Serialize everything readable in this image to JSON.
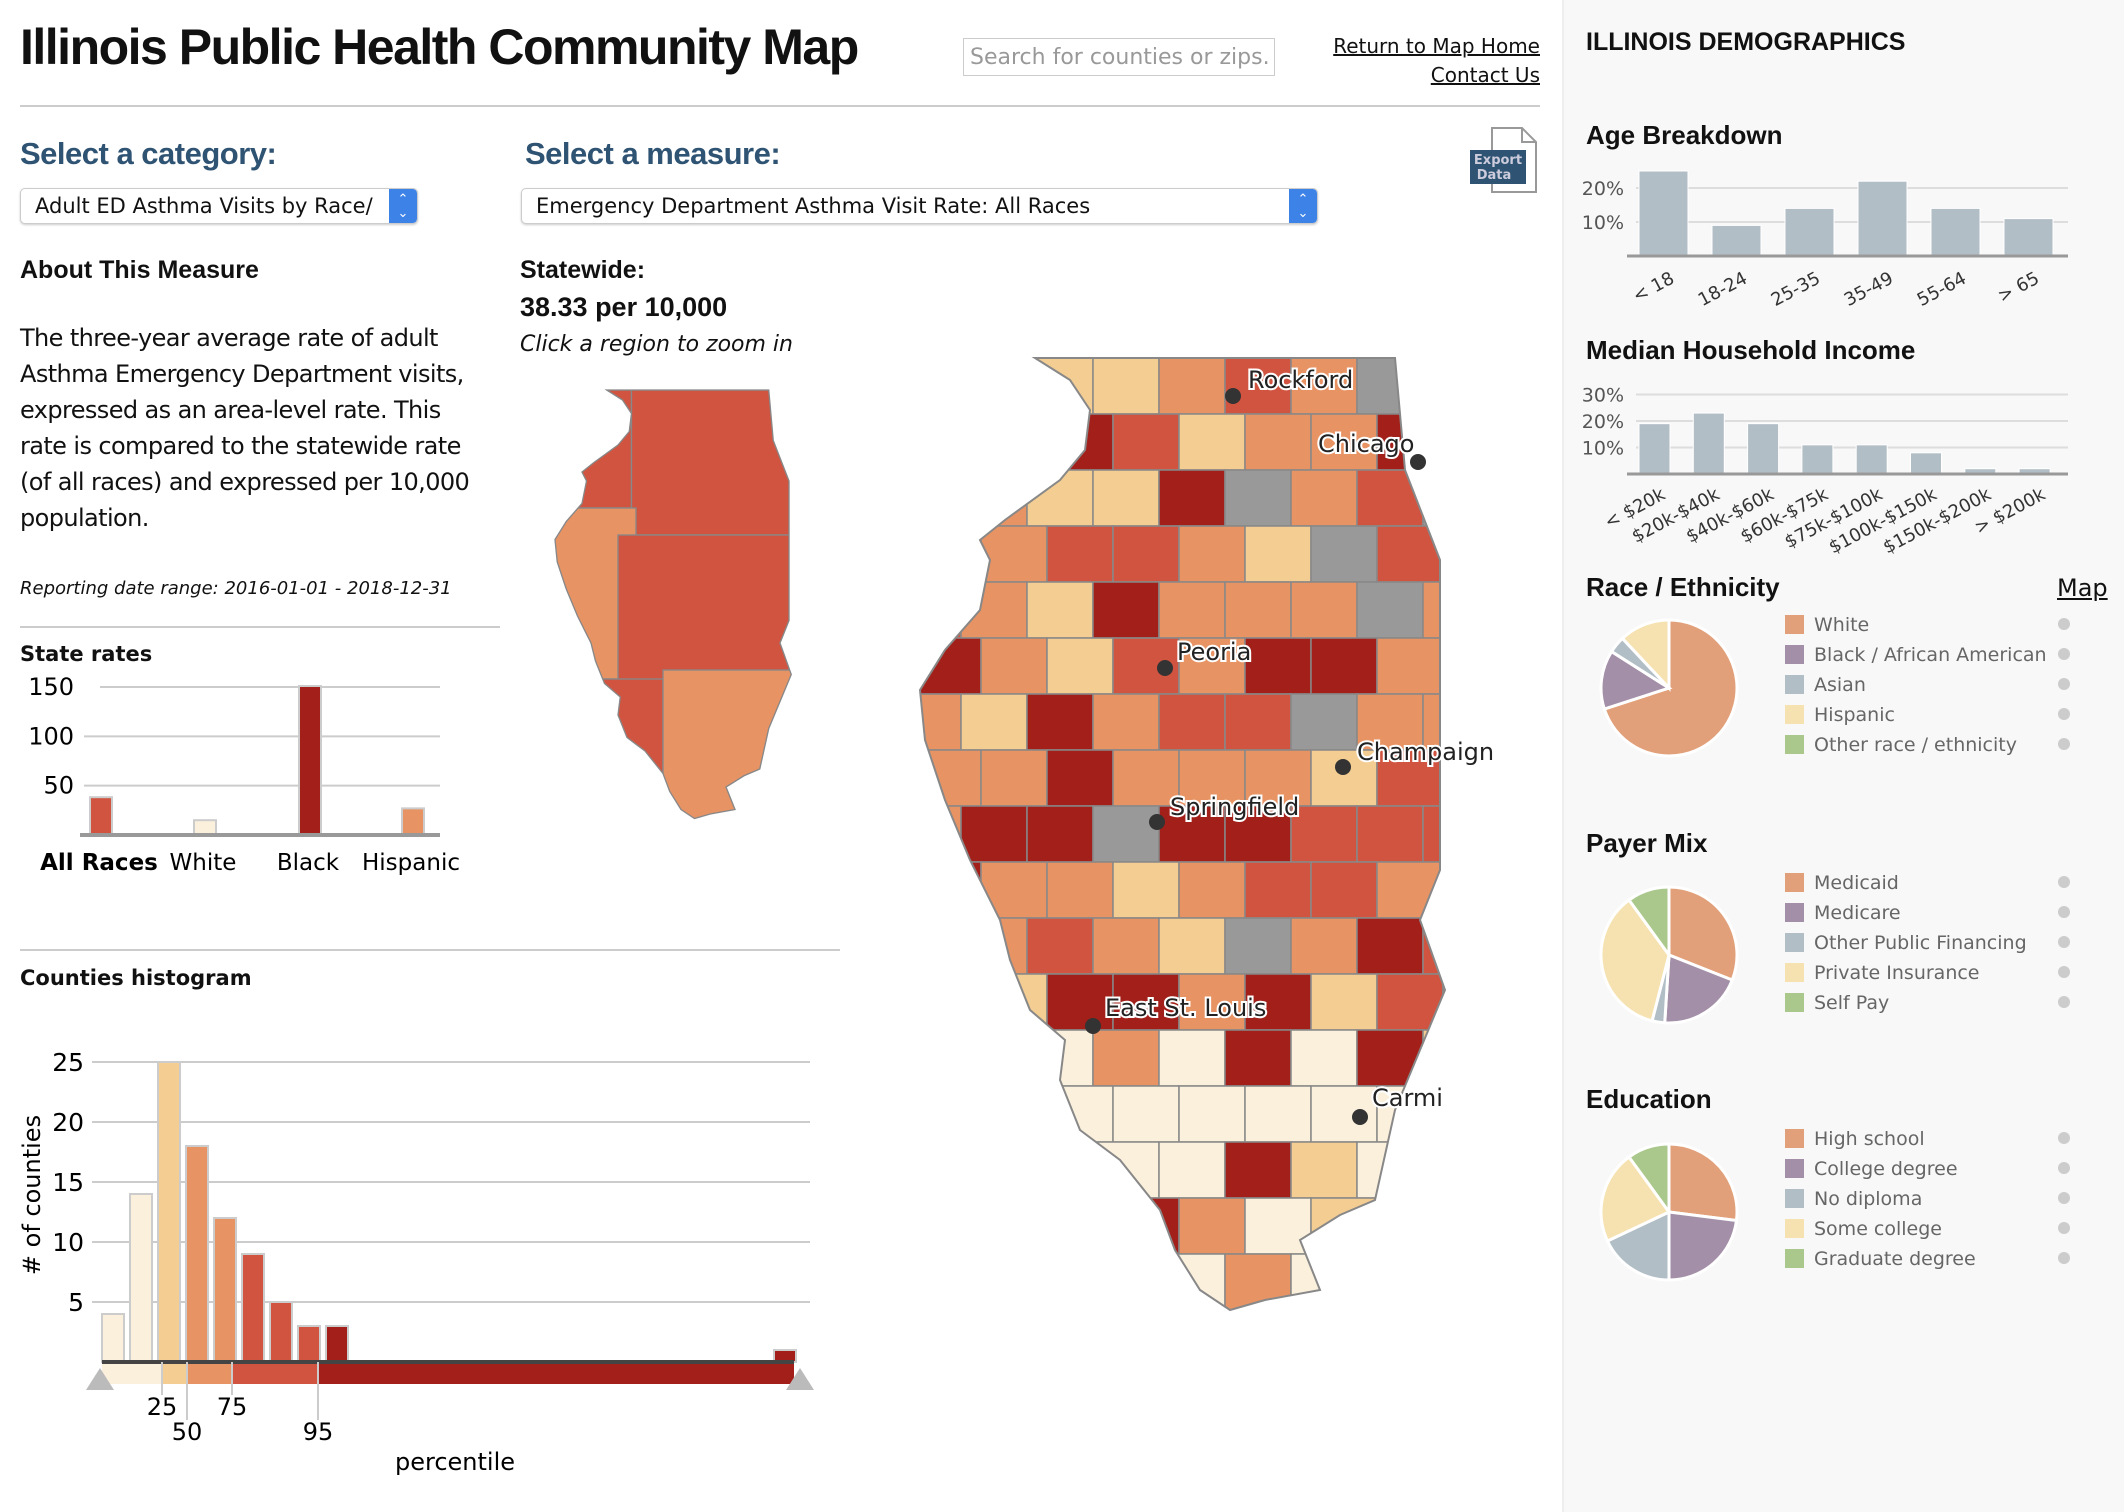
{
  "header": {
    "title": "Illinois Public Health Community Map",
    "search_placeholder": "Search for counties or zips...",
    "link_home": "Return to Map Home",
    "link_contact": "Contact Us"
  },
  "controls": {
    "category_label": "Select a category:",
    "category_value": "Adult ED Asthma Visits by Race/",
    "measure_label": "Select a measure:",
    "measure_value": "Emergency Department Asthma Visit Rate: All Races",
    "export_label_1": "Export",
    "export_label_2": "Data"
  },
  "about": {
    "heading": "About This Measure",
    "text": "The three-year average rate of adult Asthma Emergency Department visits, expressed as an area-level rate. This rate is compared to the statewide rate (of all races) and expressed per 10,000 population.",
    "reporting": "Reporting date range: 2016-01-01 - 2018-12-31"
  },
  "statewide": {
    "label": "Statewide:",
    "value": "38.33 per 10,000",
    "hint": "Click a region to zoom in"
  },
  "map": {
    "cities": [
      "Rockford",
      "Chicago",
      "Peoria",
      "Champaign",
      "Springfield",
      "East St. Louis",
      "Carmi"
    ],
    "colors": {
      "q1": "#fbf0dc",
      "q2": "#f3cd92",
      "q3": "#e89363",
      "q4": "#d05440",
      "q5": "#a31f19",
      "nodata": "#999999"
    }
  },
  "chart_data": [
    {
      "id": "state_rates",
      "type": "bar",
      "title": "State rates",
      "categories": [
        "All Races",
        "White",
        "Black",
        "Hispanic"
      ],
      "values": [
        38.33,
        15,
        151,
        27
      ],
      "ylim": [
        0,
        150
      ],
      "yticks": [
        50,
        100,
        150
      ],
      "colors": [
        "#d05440",
        "#fbf0dc",
        "#a31f19",
        "#e89363"
      ],
      "bold_category": "All Races",
      "grid": true
    },
    {
      "id": "histogram",
      "type": "bar",
      "title": "Counties histogram",
      "xlabel": "percentile",
      "ylabel": "# of counties",
      "values": [
        4,
        14,
        25,
        18,
        12,
        9,
        5,
        3,
        3,
        1
      ],
      "colors": [
        "#fbf0dc",
        "#fbf0dc",
        "#f3cd92",
        "#e89363",
        "#e89363",
        "#d05440",
        "#d05440",
        "#d05440",
        "#a31f19",
        "#a31f19"
      ],
      "ylim": [
        0,
        25
      ],
      "yticks": [
        5,
        10,
        15,
        20,
        25
      ],
      "percentile_ticks": [
        "25",
        "50",
        "75",
        "95"
      ],
      "grid": true
    },
    {
      "id": "age",
      "type": "bar",
      "title": "Age Breakdown",
      "categories": [
        "< 18",
        "18-24",
        "25-35",
        "35-49",
        "55-64",
        "> 65"
      ],
      "values": [
        25,
        9,
        14,
        22,
        14,
        11
      ],
      "yticks": [
        "10%",
        "20%"
      ],
      "color": "#b2bec6"
    },
    {
      "id": "income",
      "type": "bar",
      "title": "Median Household Income",
      "categories": [
        "< $20k",
        "$20k-$40k",
        "$40k-$60k",
        "$60k-$75k",
        "$75k-$100k",
        "$100k-$150k",
        "$150k-$200k",
        "> $200k"
      ],
      "values": [
        19,
        23,
        19,
        11,
        11,
        8,
        2,
        2
      ],
      "yticks": [
        "10%",
        "20%",
        "30%"
      ],
      "color": "#b2bec6"
    },
    {
      "id": "race",
      "type": "pie",
      "title": "Race / Ethnicity",
      "categories": [
        "White",
        "Black / African American",
        "Asian",
        "Hispanic",
        "Other race / ethnicity"
      ],
      "values": [
        70,
        14,
        4,
        12,
        0
      ],
      "colors": [
        "#e2a07a",
        "#a48fa8",
        "#b2bec6",
        "#f6e2b0",
        "#aac78c"
      ]
    },
    {
      "id": "payer",
      "type": "pie",
      "title": "Payer Mix",
      "categories": [
        "Medicaid",
        "Medicare",
        "Other Public Financing",
        "Private Insurance",
        "Self Pay"
      ],
      "values": [
        31,
        20,
        3,
        36,
        10
      ],
      "colors": [
        "#e2a07a",
        "#a48fa8",
        "#b2bec6",
        "#f6e2b0",
        "#aac78c"
      ]
    },
    {
      "id": "education",
      "type": "pie",
      "title": "Education",
      "categories": [
        "High school",
        "College degree",
        "No diploma",
        "Some college",
        "Graduate degree"
      ],
      "values": [
        27,
        23,
        18,
        22,
        10
      ],
      "colors": [
        "#e2a07a",
        "#a48fa8",
        "#b2bec6",
        "#f6e2b0",
        "#aac78c"
      ]
    }
  ],
  "sidebar": {
    "title": "ILLINOIS DEMOGRAPHICS",
    "map_link": "Map"
  }
}
